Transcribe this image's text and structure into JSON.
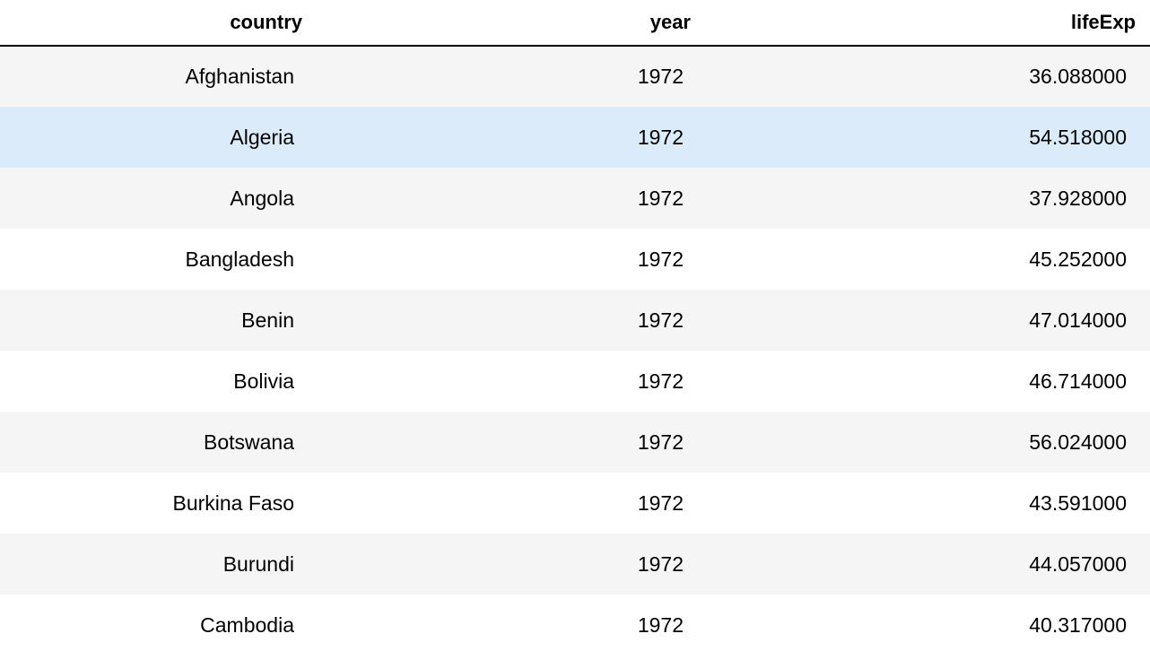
{
  "table": {
    "columns": [
      "country",
      "year",
      "lifeExp"
    ],
    "rows": [
      {
        "country": "Afghanistan",
        "year": "1972",
        "lifeExp": "36.088000"
      },
      {
        "country": "Algeria",
        "year": "1972",
        "lifeExp": "54.518000"
      },
      {
        "country": "Angola",
        "year": "1972",
        "lifeExp": "37.928000"
      },
      {
        "country": "Bangladesh",
        "year": "1972",
        "lifeExp": "45.252000"
      },
      {
        "country": "Benin",
        "year": "1972",
        "lifeExp": "47.014000"
      },
      {
        "country": "Bolivia",
        "year": "1972",
        "lifeExp": "46.714000"
      },
      {
        "country": "Botswana",
        "year": "1972",
        "lifeExp": "56.024000"
      },
      {
        "country": "Burkina Faso",
        "year": "1972",
        "lifeExp": "43.591000"
      },
      {
        "country": "Burundi",
        "year": "1972",
        "lifeExp": "44.057000"
      },
      {
        "country": "Cambodia",
        "year": "1972",
        "lifeExp": "40.317000"
      }
    ],
    "hovered_row": "Algeria"
  },
  "colors": {
    "stripe": "#f5f5f5",
    "hover": "#dcebfa",
    "header_rule": "#000000"
  }
}
